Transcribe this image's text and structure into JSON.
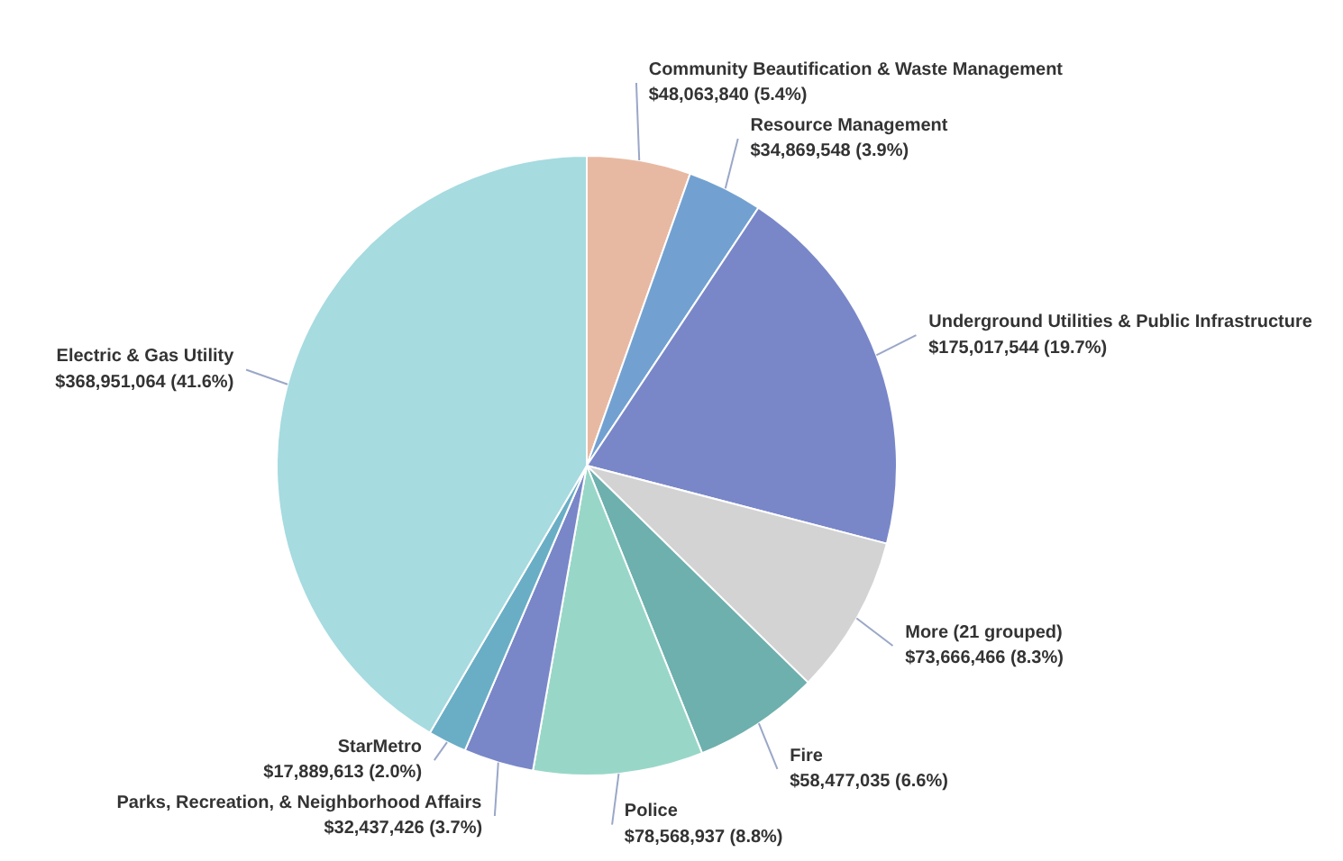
{
  "chart_data": {
    "type": "pie",
    "categories": [
      "Community Beautification & Waste Management",
      "Resource Management",
      "Underground Utilities & Public Infrastructure",
      "More (21 grouped)",
      "Fire",
      "Police",
      "Parks, Recreation, & Neighborhood Affairs",
      "StarMetro",
      "Electric & Gas Utility"
    ],
    "values": [
      48063840,
      34869548,
      175017544,
      73666466,
      58477035,
      78568937,
      32437426,
      17889613,
      368951064
    ],
    "colors": [
      "#e8b9a2",
      "#72a1d1",
      "#7987c9",
      "#d3d3d3",
      "#6db0ae",
      "#98d7c7",
      "#7987c9",
      "#6aaec6",
      "#a6dbe0"
    ],
    "value_labels": [
      "$48,063,840 (5.4%)",
      "$34,869,548 (3.9%)",
      "$175,017,544 (19.7%)",
      "$73,666,466 (8.3%)",
      "$58,477,035 (6.6%)",
      "$78,568,937 (8.8%)",
      "$32,437,426 (3.7%)",
      "$17,889,613 (2.0%)",
      "$368,951,064 (41.6%)"
    ]
  }
}
